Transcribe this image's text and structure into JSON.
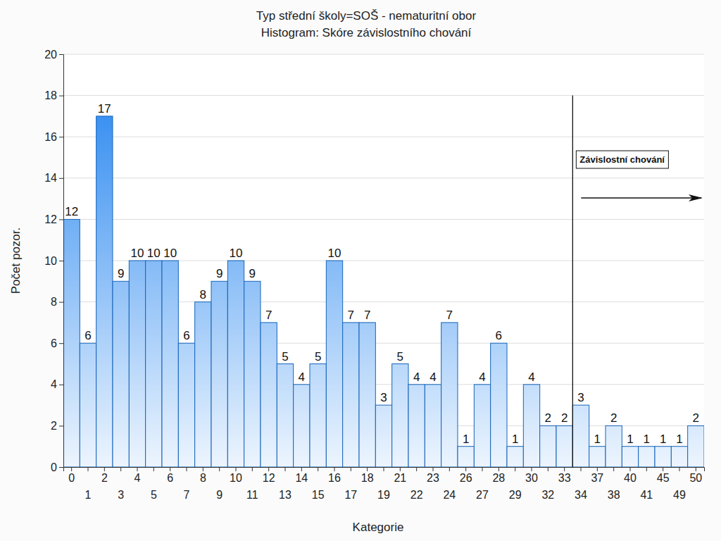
{
  "chart_data": {
    "type": "bar",
    "title": "Typ střední školy=SOŠ - nematuritní obor",
    "subtitle": "Histogram: Skóre závislostního chování",
    "x_label": "Kategorie",
    "y_label": "Počet pozor.",
    "categories": [
      "0",
      "1",
      "2",
      "3",
      "4",
      "5",
      "6",
      "7",
      "8",
      "9",
      "10",
      "11",
      "12",
      "13",
      "14",
      "15",
      "16",
      "17",
      "18",
      "19",
      "21",
      "22",
      "23",
      "24",
      "26",
      "27",
      "28",
      "29",
      "30",
      "32",
      "33",
      "34",
      "37",
      "38",
      "40",
      "41",
      "45",
      "49",
      "50"
    ],
    "values": [
      12,
      6,
      17,
      9,
      10,
      10,
      10,
      6,
      8,
      9,
      10,
      9,
      7,
      5,
      4,
      5,
      10,
      7,
      7,
      3,
      5,
      4,
      4,
      7,
      1,
      4,
      6,
      1,
      4,
      2,
      2,
      3,
      1,
      2,
      1,
      1,
      1,
      1,
      2
    ],
    "color": "#1c80ef",
    "ylim": [
      0,
      20
    ],
    "yticks": [
      0,
      2,
      4,
      6,
      8,
      10,
      12,
      14,
      16,
      18,
      20
    ],
    "grid": true,
    "data_labels": true,
    "annotation": {
      "text": "Závislostní chování",
      "category": "34"
    }
  }
}
